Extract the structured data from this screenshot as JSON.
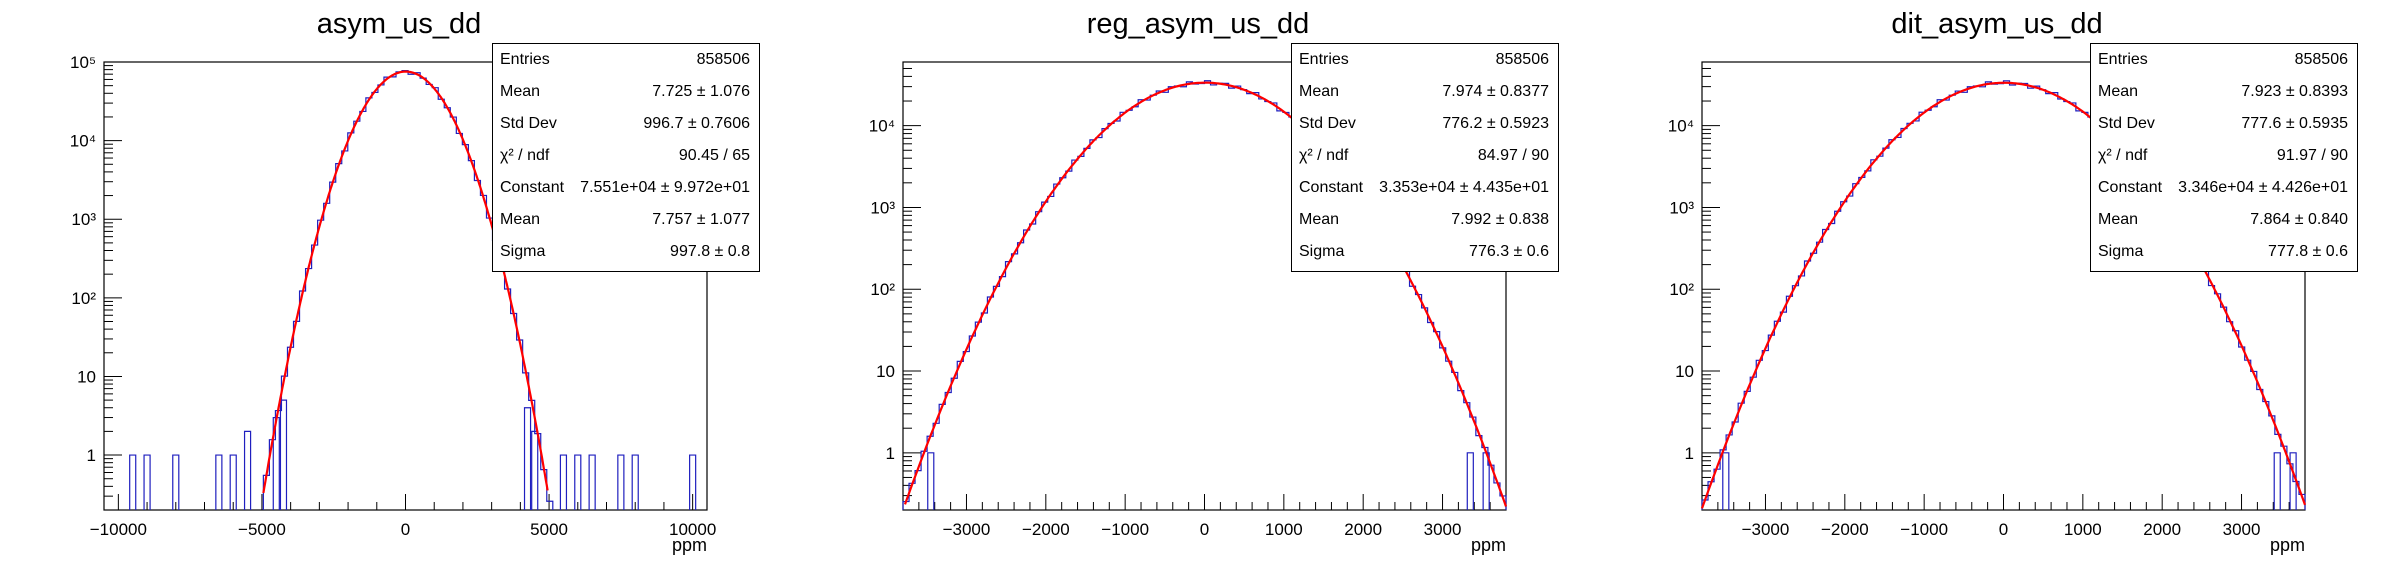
{
  "chart_data": [
    {
      "type": "histogram",
      "title": "asym_us_dd",
      "xlabel": "ppm",
      "xlim": [
        -10500,
        10500
      ],
      "ylog": true,
      "ylim": [
        0.2,
        100000
      ],
      "x_ticks": [
        -10000,
        -5000,
        0,
        5000,
        10000
      ],
      "x_tick_labels": [
        "−10000",
        "−5000",
        "0",
        "5000",
        "10000"
      ],
      "y_ticks": [
        1,
        10,
        100,
        1000,
        10000,
        100000
      ],
      "y_tick_labels": [
        "1",
        "10",
        "10²",
        "10³",
        "10⁴",
        "10⁵"
      ],
      "histogram_color": "#1f1fbf",
      "fit_color": "#ff0000",
      "fit": {
        "function": "gaus",
        "constant": 75510,
        "mean": 7.757,
        "sigma": 997.8,
        "range": [
          -4950,
          4950
        ]
      },
      "outliers": [
        {
          "x": -9500,
          "count": 1
        },
        {
          "x": -9000,
          "count": 1
        },
        {
          "x": -8000,
          "count": 1
        },
        {
          "x": -6500,
          "count": 1
        },
        {
          "x": -6000,
          "count": 1
        },
        {
          "x": -5500,
          "count": 2
        },
        {
          "x": -4500,
          "count": 3
        },
        {
          "x": -4250,
          "count": 5
        },
        {
          "x": 4250,
          "count": 4
        },
        {
          "x": 4500,
          "count": 2
        },
        {
          "x": 5500,
          "count": 1
        },
        {
          "x": 6000,
          "count": 1
        },
        {
          "x": 6500,
          "count": 1
        },
        {
          "x": 7500,
          "count": 1
        },
        {
          "x": 8000,
          "count": 1
        },
        {
          "x": 10000,
          "count": 1
        }
      ],
      "stats": [
        {
          "key": "Entries",
          "value": "858506"
        },
        {
          "key": "Mean",
          "value": "7.725 ±  1.076"
        },
        {
          "key": "Std Dev",
          "value": "996.7 ± 0.7606"
        },
        {
          "key": "χ² / ndf",
          "value": "90.45 / 65"
        },
        {
          "key": "Constant",
          "value": "7.551e+04 ± 9.972e+01"
        },
        {
          "key": "Mean",
          "value": "7.757 ± 1.077"
        },
        {
          "key": "Sigma",
          "value": "997.8 ± 0.8"
        }
      ]
    },
    {
      "type": "histogram",
      "title": "reg_asym_us_dd",
      "xlabel": "ppm",
      "xlim": [
        -3800,
        3800
      ],
      "ylog": true,
      "ylim": [
        0.2,
        60000
      ],
      "x_ticks": [
        -3000,
        -2000,
        -1000,
        0,
        1000,
        2000,
        3000
      ],
      "x_tick_labels": [
        "−3000",
        "−2000",
        "−1000",
        "0",
        "1000",
        "2000",
        "3000"
      ],
      "y_ticks": [
        1,
        10,
        100,
        1000,
        10000
      ],
      "y_tick_labels": [
        "1",
        "10",
        "10²",
        "10³",
        "10⁴"
      ],
      "histogram_color": "#1f1fbf",
      "fit_color": "#ff0000",
      "fit": {
        "function": "gaus",
        "constant": 33530,
        "mean": 7.992,
        "sigma": 776.3,
        "range": [
          -3800,
          3800
        ]
      },
      "outliers": [
        {
          "x": -3450,
          "count": 1
        },
        {
          "x": 3350,
          "count": 1
        },
        {
          "x": 3550,
          "count": 1
        }
      ],
      "stats": [
        {
          "key": "Entries",
          "value": "858506"
        },
        {
          "key": "Mean",
          "value": "7.974 ± 0.8377"
        },
        {
          "key": "Std Dev",
          "value": "776.2 ± 0.5923"
        },
        {
          "key": "χ² / ndf",
          "value": "84.97 / 90"
        },
        {
          "key": "Constant",
          "value": "3.353e+04 ± 4.435e+01"
        },
        {
          "key": "Mean",
          "value": "7.992 ± 0.838"
        },
        {
          "key": "Sigma",
          "value": "776.3 ± 0.6"
        }
      ]
    },
    {
      "type": "histogram",
      "title": "dit_asym_us_dd",
      "xlabel": "ppm",
      "xlim": [
        -3800,
        3800
      ],
      "ylog": true,
      "ylim": [
        0.2,
        60000
      ],
      "x_ticks": [
        -3000,
        -2000,
        -1000,
        0,
        1000,
        2000,
        3000
      ],
      "x_tick_labels": [
        "−3000",
        "−2000",
        "−1000",
        "0",
        "1000",
        "2000",
        "3000"
      ],
      "y_ticks": [
        1,
        10,
        100,
        1000,
        10000
      ],
      "y_tick_labels": [
        "1",
        "10",
        "10²",
        "10³",
        "10⁴"
      ],
      "histogram_color": "#1f1fbf",
      "fit_color": "#ff0000",
      "fit": {
        "function": "gaus",
        "constant": 33460,
        "mean": 7.864,
        "sigma": 777.8,
        "range": [
          -3800,
          3800
        ]
      },
      "outliers": [
        {
          "x": -3500,
          "count": 1
        },
        {
          "x": 3450,
          "count": 1
        },
        {
          "x": 3650,
          "count": 1
        }
      ],
      "stats": [
        {
          "key": "Entries",
          "value": "858506"
        },
        {
          "key": "Mean",
          "value": "7.923 ± 0.8393"
        },
        {
          "key": "Std Dev",
          "value": "777.6 ± 0.5935"
        },
        {
          "key": "χ² / ndf",
          "value": "91.97 / 90"
        },
        {
          "key": "Constant",
          "value": "3.346e+04 ± 4.426e+01"
        },
        {
          "key": "Mean",
          "value": "7.864 ± 0.840"
        },
        {
          "key": "Sigma",
          "value": "777.8 ± 0.6"
        }
      ]
    }
  ]
}
